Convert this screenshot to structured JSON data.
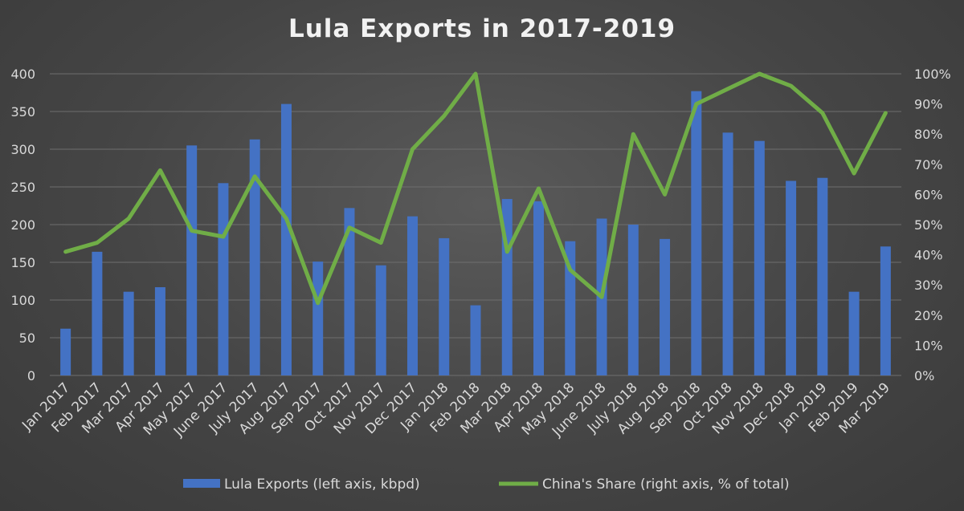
{
  "chart_data": {
    "type": "bar",
    "title": "Lula Exports in 2017-2019",
    "categories": [
      "Jan 2017",
      "Feb 2017",
      "Mar 2017",
      "Apr 2017",
      "May 2017",
      "June 2017",
      "July 2017",
      "Aug 2017",
      "Sep 2017",
      "Oct 2017",
      "Nov 2017",
      "Dec 2017",
      "Jan 2018",
      "Feb 2018",
      "Mar 2018",
      "Apr 2018",
      "May 2018",
      "June 2018",
      "July 2018",
      "Aug 2018",
      "Sep 2018",
      "Oct 2018",
      "Nov 2018",
      "Dec 2018",
      "Jan 2019",
      "Feb 2019",
      "Mar 2019"
    ],
    "series": [
      {
        "name": "Lula Exports (left axis, kbpd)",
        "type": "bar",
        "axis": "left",
        "color": "#4472c4",
        "values": [
          62,
          164,
          111,
          117,
          305,
          255,
          313,
          360,
          151,
          222,
          146,
          211,
          182,
          93,
          234,
          231,
          178,
          208,
          200,
          181,
          377,
          322,
          311,
          258,
          262,
          111,
          171
        ]
      },
      {
        "name": "China's Share (right axis, % of total)",
        "type": "line",
        "axis": "right",
        "color": "#70ad47",
        "values": [
          41,
          44,
          52,
          68,
          48,
          46,
          66,
          52,
          24,
          49,
          44,
          75,
          86,
          100,
          41,
          62,
          35,
          26,
          80,
          60,
          90,
          95,
          100,
          96,
          87,
          67,
          87
        ]
      }
    ],
    "y_left": {
      "min": 0,
      "max": 400,
      "ticks": [
        0,
        50,
        100,
        150,
        200,
        250,
        300,
        350,
        400
      ]
    },
    "y_right": {
      "min": 0,
      "max": 100,
      "ticks": [
        "0%",
        "10%",
        "20%",
        "30%",
        "40%",
        "50%",
        "60%",
        "70%",
        "80%",
        "90%",
        "100%"
      ]
    },
    "grid": true,
    "legend_position": "bottom"
  }
}
